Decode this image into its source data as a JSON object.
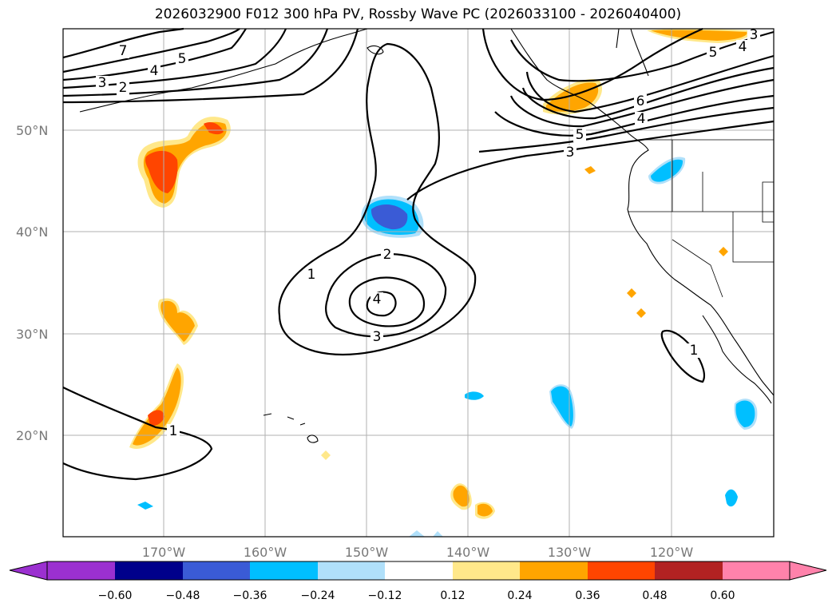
{
  "title": "2026032900 F012 300 hPa PV, Rossby Wave PC (2026033100 - 2026040400)",
  "map": {
    "lat_labels": [
      "50°N",
      "40°N",
      "30°N",
      "20°N"
    ],
    "lon_labels": [
      "170°W",
      "160°W",
      "150°W",
      "140°W",
      "130°W",
      "120°W"
    ],
    "contour_labels": [
      "7",
      "5",
      "4",
      "3",
      "2",
      "1",
      "2",
      "4",
      "3",
      "6",
      "5",
      "4",
      "3",
      "1",
      "1",
      "5",
      "4",
      "3"
    ]
  },
  "colorbar": {
    "ticks": [
      "−0.60",
      "−0.48",
      "−0.36",
      "−0.24",
      "−0.12",
      "0.12",
      "0.24",
      "0.36",
      "0.48",
      "0.60"
    ],
    "colors": [
      "#8a2be2",
      "#9b30d0",
      "#00008b",
      "#3a5bd6",
      "#00bfff",
      "#b0e0fa",
      "#ffffff",
      "#ffe88a",
      "#ffa500",
      "#ff4500",
      "#b22222",
      "#ff82ab",
      "#ff82ab"
    ]
  }
}
